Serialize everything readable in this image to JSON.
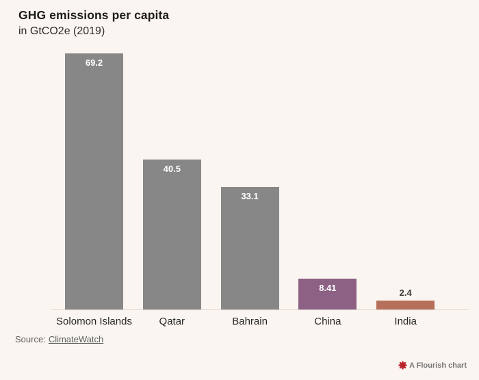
{
  "header": {
    "title": "GHG emissions per capita",
    "subtitle": "in GtCO2e (2019)"
  },
  "chart_data": {
    "type": "bar",
    "title": "GHG emissions per capita",
    "subtitle": "in GtCO2e (2019)",
    "categories": [
      "Solomon Islands",
      "Qatar",
      "Bahrain",
      "China",
      "India"
    ],
    "values": [
      69.2,
      40.5,
      33.1,
      8.41,
      2.4
    ],
    "value_labels": [
      "69.2",
      "40.5",
      "33.1",
      "8.41",
      "2.4"
    ],
    "bar_colors": [
      "#878787",
      "#878787",
      "#878787",
      "#8c6184",
      "#b56f5a"
    ],
    "value_label_positions": [
      "inside",
      "inside",
      "inside",
      "inside",
      "above"
    ],
    "xlabel": "",
    "ylabel": "",
    "ylim": [
      0,
      69.2
    ],
    "grid": false,
    "legend_position": "none",
    "orientation": "vertical"
  },
  "footer": {
    "source_prefix": "Source:",
    "source_link": "ClimateWatch"
  },
  "branding": {
    "label": "A Flourish chart"
  },
  "colors": {
    "background": "#faf5f0",
    "bar_gray": "#878787",
    "bar_purple": "#8c6184",
    "bar_terracotta": "#b56f5a",
    "title_color": "#1d1d1b",
    "axis_label_color": "#262626",
    "value_inside_color": "#ffffff",
    "value_above_color": "#3a3a3a",
    "axis_line_color": "#ddd5ce",
    "source_text_color": "#5f5f5f",
    "branding_text_color": "#757575",
    "branding_icon_color": "#b8232a"
  }
}
